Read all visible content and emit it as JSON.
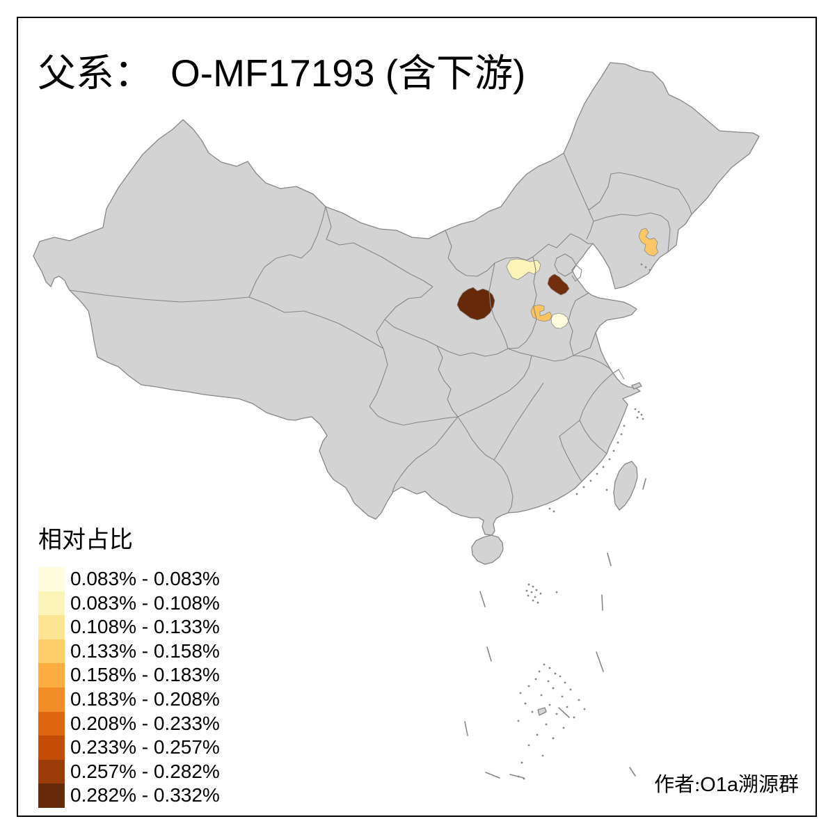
{
  "title": {
    "prefix": "父系：",
    "main": "O-MF17193 (含下游)"
  },
  "legend": {
    "title": "相对占比",
    "bins": [
      {
        "label": "0.083% - 0.083%",
        "color": "#FFFCDE"
      },
      {
        "label": "0.083% - 0.108%",
        "color": "#FCF3B8"
      },
      {
        "label": "0.108% - 0.133%",
        "color": "#FDE493"
      },
      {
        "label": "0.133% - 0.158%",
        "color": "#FDCD68"
      },
      {
        "label": "0.158% - 0.183%",
        "color": "#FCAD40"
      },
      {
        "label": "0.183% - 0.208%",
        "color": "#F28C24"
      },
      {
        "label": "0.208% - 0.233%",
        "color": "#DE6610"
      },
      {
        "label": "0.233% - 0.257%",
        "color": "#C44D05"
      },
      {
        "label": "0.257% - 0.282%",
        "color": "#9B3B07"
      },
      {
        "label": "0.282% - 0.332%",
        "color": "#662A0B"
      }
    ]
  },
  "author": {
    "prefix_zh": "作者:",
    "group": "O1a溯源群"
  },
  "map": {
    "base_fill": "#D3D3D3",
    "border_color": "#868686",
    "background": "#FFFFFF",
    "regions": [
      {
        "id": "r1",
        "location": "northeast-liaoning",
        "color": "#FBC765",
        "bin": "0.133% - 0.158%"
      },
      {
        "id": "r2",
        "location": "north-band-shanxi",
        "color": "#FCF3B8",
        "bin": "0.083% - 0.108%"
      },
      {
        "id": "r3",
        "location": "central-dark-small-hebei",
        "color": "#722E0D",
        "bin": "0.257% - 0.282%"
      },
      {
        "id": "r4",
        "location": "central-dark-large-shaanxi",
        "color": "#662A0B",
        "bin": "0.282% - 0.332%"
      },
      {
        "id": "r5",
        "location": "south-hebei-orange",
        "color": "#FAC35F",
        "bin": "0.133% - 0.158%"
      },
      {
        "id": "r6",
        "location": "south-hebei-cream",
        "color": "#FFFCDE",
        "bin": "0.083% - 0.083%"
      }
    ]
  }
}
